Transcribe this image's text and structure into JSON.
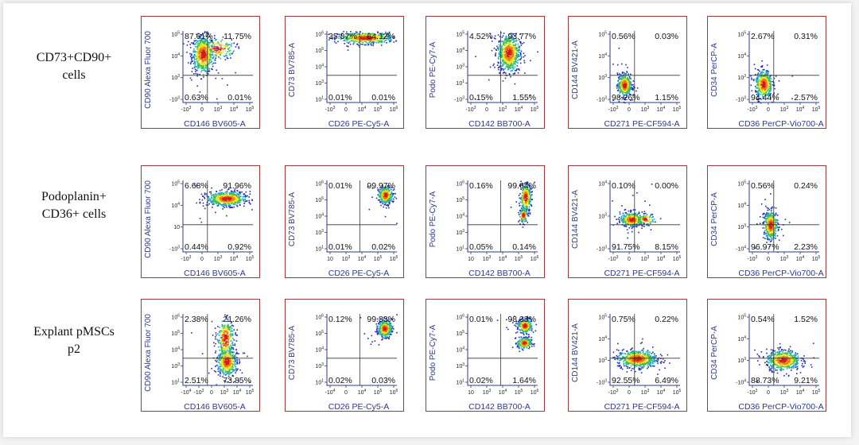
{
  "figure": {
    "rows": [
      {
        "label_lines": [
          "CD73+CD90+",
          "cells"
        ]
      },
      {
        "label_lines": [
          "Podoplanin+",
          "CD36+ cells"
        ]
      },
      {
        "label_lines": [
          "Explant pMSCs",
          "p2"
        ]
      }
    ]
  },
  "colors": {
    "frame": "#a03a3a",
    "axis": "#2e3a87",
    "density": [
      "#1f2fb0",
      "#19a7c8",
      "#3bc24a",
      "#f0e21c",
      "#ee7a14",
      "#d61b12"
    ]
  },
  "chart_data": [
    {
      "type": "scatter",
      "row": 0,
      "col": 0,
      "xlabel": "CD146 BV605-A",
      "ylabel": "CD90 Alexa Fluor 700",
      "quadrants": {
        "ul": "87.61%",
        "ur": "11.75%",
        "ll": "0.63%",
        "lr": "0.01%"
      },
      "xticks": [
        "-10^3",
        "0",
        "10^3",
        "10^4",
        "10^5"
      ],
      "yticks": [
        "10^5",
        "10^4",
        "10^3",
        "-10^3"
      ],
      "populations": [
        {
          "x": 0.28,
          "y": 0.68,
          "sx": 0.08,
          "sy": 0.13,
          "n": 650
        },
        {
          "x": 0.48,
          "y": 0.76,
          "sx": 0.13,
          "sy": 0.07,
          "n": 160
        }
      ]
    },
    {
      "type": "scatter",
      "row": 0,
      "col": 1,
      "xlabel": "CD26 PE-Cy5-A",
      "ylabel": "CD73 BV785-A",
      "quadrants": {
        "ul": "35.87%",
        "ur": "64.12%",
        "ll": "0.01%",
        "lr": "0.01%"
      },
      "xticks": [
        "-10^3",
        "0",
        "10^4",
        "10^5",
        "10^6"
      ],
      "yticks": [
        "10^6",
        "10^5",
        "10^4",
        "10^3",
        "10^1"
      ],
      "populations": [
        {
          "x": 0.55,
          "y": 0.91,
          "sx": 0.2,
          "sy": 0.04,
          "n": 520
        }
      ]
    },
    {
      "type": "scatter",
      "row": 0,
      "col": 2,
      "xlabel": "CD142 BB700-A",
      "ylabel": "Podo PE-Cy7-A",
      "quadrants": {
        "ul": "4.52%",
        "ur": "93.77%",
        "ll": "0.15%",
        "lr": "1.55%"
      },
      "xticks": [
        "-10^3",
        "0",
        "10^3",
        "10^4",
        "10^5"
      ],
      "yticks": [
        "10^5",
        "10^4",
        "10^3",
        "10^1",
        "-10^3"
      ],
      "populations": [
        {
          "x": 0.58,
          "y": 0.7,
          "sx": 0.08,
          "sy": 0.13,
          "n": 650
        }
      ]
    },
    {
      "type": "scatter",
      "row": 0,
      "col": 3,
      "xlabel": "CD271 PE-CF594-A",
      "ylabel": "CD144 BV421-A",
      "quadrants": {
        "ul": "0.56%",
        "ur": "0.03%",
        "ll": "98.26%",
        "lr": "1.15%"
      },
      "xticks": [
        "-10^3",
        "0",
        "10^3",
        "10^4",
        "10^5"
      ],
      "yticks": [
        "10^5",
        "10^4",
        "10^3",
        "-10^3"
      ],
      "populations": [
        {
          "x": 0.2,
          "y": 0.25,
          "sx": 0.05,
          "sy": 0.08,
          "n": 420
        }
      ]
    },
    {
      "type": "scatter",
      "row": 0,
      "col": 4,
      "xlabel": "CD36 PerCP-Vio700-A",
      "ylabel": "CD34 PerCP-A",
      "quadrants": {
        "ul": "2.67%",
        "ur": "0.31%",
        "ll": "94.44%",
        "lr": "2.57%"
      },
      "xticks": [
        "-10^3",
        "0",
        "10^3",
        "10^4",
        "10^5"
      ],
      "yticks": [
        "10^5",
        "10^4",
        "10^3",
        "-10^3"
      ],
      "populations": [
        {
          "x": 0.2,
          "y": 0.26,
          "sx": 0.06,
          "sy": 0.1,
          "n": 420
        }
      ]
    },
    {
      "type": "scatter",
      "row": 1,
      "col": 0,
      "xlabel": "CD146 BV605-A",
      "ylabel": "CD90 Alexa Fluor 700",
      "quadrants": {
        "ul": "6.68%",
        "ur": "91.96%",
        "ll": "0.44%",
        "lr": "0.92%"
      },
      "xticks": [
        "-10^3",
        "0",
        "10^3",
        "10^4",
        "10^5"
      ],
      "yticks": [
        "10^5",
        "10^4",
        "10",
        "-10^3"
      ],
      "populations": [
        {
          "x": 0.62,
          "y": 0.75,
          "sx": 0.14,
          "sy": 0.05,
          "n": 600
        }
      ]
    },
    {
      "type": "scatter",
      "row": 1,
      "col": 1,
      "xlabel": "CD26 PE-Cy5-A",
      "ylabel": "CD73 BV785-A",
      "quadrants": {
        "ul": "0.01%",
        "ur": "99.97%",
        "ll": "0.01%",
        "lr": "0.02%"
      },
      "xticks": [
        "10",
        "10^3",
        "10^4",
        "10^5",
        "10^6"
      ],
      "yticks": [
        "10^6",
        "10^5",
        "10^4",
        "10^3",
        "10^1"
      ],
      "populations": [
        {
          "x": 0.83,
          "y": 0.8,
          "sx": 0.05,
          "sy": 0.06,
          "n": 320
        }
      ]
    },
    {
      "type": "scatter",
      "row": 1,
      "col": 2,
      "xlabel": "CD142 BB700-A",
      "ylabel": "Podo PE-Cy7-A",
      "quadrants": {
        "ul": "0.16%",
        "ur": "99.64%",
        "ll": "0.05%",
        "lr": "0.14%"
      },
      "xticks": [
        "10",
        "10^3",
        "10^4",
        "10^5",
        "10^6"
      ],
      "yticks": [
        "10^6",
        "10^5",
        "10^4",
        "10^3",
        "10^1"
      ],
      "populations": [
        {
          "x": 0.82,
          "y": 0.77,
          "sx": 0.04,
          "sy": 0.1,
          "n": 300
        },
        {
          "x": 0.79,
          "y": 0.52,
          "sx": 0.03,
          "sy": 0.05,
          "n": 110
        }
      ]
    },
    {
      "type": "scatter",
      "row": 1,
      "col": 3,
      "xlabel": "CD271 PE-CF594-A",
      "ylabel": "CD144 BV421-A",
      "quadrants": {
        "ul": "0.10%",
        "ur": "0.00%",
        "ll": "91.75%",
        "lr": "8.15%"
      },
      "xticks": [
        "-10^3",
        "0",
        "10^3",
        "10^4",
        "10^5"
      ],
      "yticks": [
        "10^4",
        "10^3",
        "-10^3"
      ],
      "populations": [
        {
          "x": 0.3,
          "y": 0.46,
          "sx": 0.08,
          "sy": 0.05,
          "n": 350
        },
        {
          "x": 0.5,
          "y": 0.46,
          "sx": 0.06,
          "sy": 0.04,
          "n": 90
        }
      ]
    },
    {
      "type": "scatter",
      "row": 1,
      "col": 4,
      "xlabel": "CD36 PerCP-Vio700-A",
      "ylabel": "CD34 PerCP-A",
      "quadrants": {
        "ul": "0.56%",
        "ur": "0.24%",
        "ll": "96.97%",
        "lr": "2.23%"
      },
      "xticks": [
        "-10^3",
        "0",
        "10^3",
        "10^4",
        "10^5"
      ],
      "yticks": [
        "10^5",
        "10^4",
        "10^3",
        "-10^4"
      ],
      "populations": [
        {
          "x": 0.3,
          "y": 0.38,
          "sx": 0.05,
          "sy": 0.1,
          "n": 420
        }
      ]
    },
    {
      "type": "scatter",
      "row": 2,
      "col": 0,
      "xlabel": "CD146 BV605-A",
      "ylabel": "CD90 Alexa Fluor 700",
      "quadrants": {
        "ul": "2.38%",
        "ur": "21.26%",
        "ll": "2.51%",
        "lr": "73.85%"
      },
      "xticks": [
        "-10^4",
        "-10^3",
        "0",
        "10^3",
        "10^4",
        "10^5"
      ],
      "yticks": [
        "10^6",
        "10^5",
        "10^4",
        "10^3",
        "10^1"
      ],
      "populations": [
        {
          "x": 0.62,
          "y": 0.34,
          "sx": 0.07,
          "sy": 0.1,
          "n": 460
        },
        {
          "x": 0.6,
          "y": 0.66,
          "sx": 0.06,
          "sy": 0.14,
          "n": 320
        }
      ]
    },
    {
      "type": "scatter",
      "row": 2,
      "col": 1,
      "xlabel": "CD26 PE-Cy5-A",
      "ylabel": "CD73 BV785-A",
      "quadrants": {
        "ul": "0.12%",
        "ur": "99.83%",
        "ll": "0.02%",
        "lr": "0.03%"
      },
      "xticks": [
        "-10^4",
        "0",
        "10^4",
        "10^5",
        "10^6"
      ],
      "yticks": [
        "10^6",
        "10^5",
        "10^4",
        "10^3",
        "10^1"
      ],
      "populations": [
        {
          "x": 0.82,
          "y": 0.8,
          "sx": 0.05,
          "sy": 0.06,
          "n": 320
        }
      ]
    },
    {
      "type": "scatter",
      "row": 2,
      "col": 2,
      "xlabel": "CD142 BB700-A",
      "ylabel": "Podo PE-Cy7-A",
      "quadrants": {
        "ul": "0.01%",
        "ur": "98.33%",
        "ll": "0.02%",
        "lr": "1.64%"
      },
      "xticks": [
        "10",
        "10^3",
        "10^4",
        "10^5",
        "10^6"
      ],
      "yticks": [
        "10^6",
        "10^5",
        "10^4",
        "10^3",
        "10^1"
      ],
      "populations": [
        {
          "x": 0.81,
          "y": 0.84,
          "sx": 0.05,
          "sy": 0.05,
          "n": 280
        },
        {
          "x": 0.8,
          "y": 0.6,
          "sx": 0.05,
          "sy": 0.04,
          "n": 220
        }
      ]
    },
    {
      "type": "scatter",
      "row": 2,
      "col": 3,
      "xlabel": "CD271 PE-CF594-A",
      "ylabel": "CD144 BV421-A",
      "quadrants": {
        "ul": "0.75%",
        "ur": "0.22%",
        "ll": "92.55%",
        "lr": "6.49%"
      },
      "xticks": [
        "-10^3",
        "0",
        "10^3",
        "10^4",
        "10^5"
      ],
      "yticks": [
        "10^5",
        "10^4",
        "10^3",
        "-10^3"
      ],
      "populations": [
        {
          "x": 0.38,
          "y": 0.38,
          "sx": 0.14,
          "sy": 0.06,
          "n": 650
        }
      ]
    },
    {
      "type": "scatter",
      "row": 2,
      "col": 4,
      "xlabel": "CD36 PerCP-Vio700-A",
      "ylabel": "CD34 PerCP-A",
      "quadrants": {
        "ul": "0.54%",
        "ur": "1.52%",
        "ll": "88.73%",
        "lr": "9.21%"
      },
      "xticks": [
        "-10^3",
        "0",
        "10^3",
        "10^4",
        "10^5"
      ],
      "yticks": [
        "10^5",
        "10^4",
        "10^3",
        "-10^4"
      ],
      "populations": [
        {
          "x": 0.48,
          "y": 0.36,
          "sx": 0.12,
          "sy": 0.07,
          "n": 550
        }
      ]
    }
  ]
}
